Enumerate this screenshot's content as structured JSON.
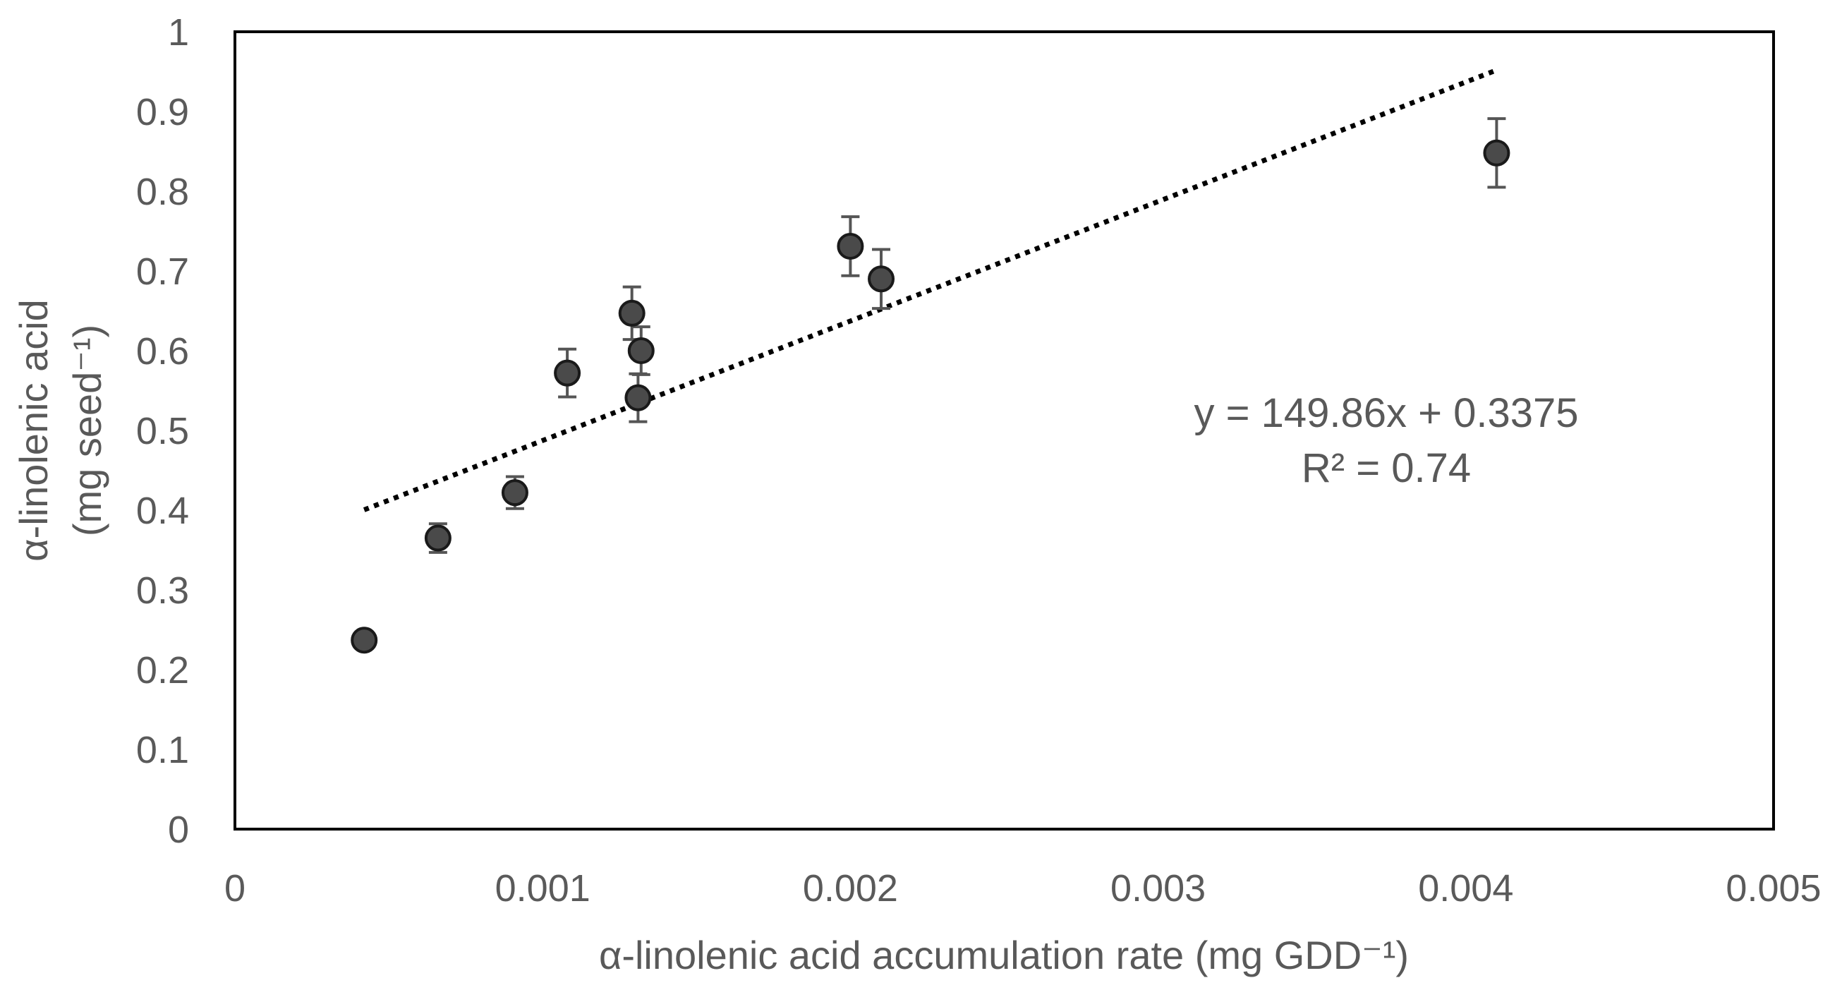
{
  "chart_data": {
    "type": "scatter",
    "xlabel": "α-linolenic acid accumulation rate (mg GDD⁻¹)",
    "ylabel_line1": "α-linolenic acid",
    "ylabel_line2": "(mg seed⁻¹)",
    "xlim": [
      0,
      0.005
    ],
    "ylim": [
      0,
      1
    ],
    "x_ticks": [
      0,
      0.001,
      0.002,
      0.003,
      0.004,
      0.005
    ],
    "x_tick_labels": [
      "0",
      "0.001",
      "0.002",
      "0.003",
      "0.004",
      "0.005"
    ],
    "y_ticks": [
      0,
      0.1,
      0.2,
      0.3,
      0.4,
      0.5,
      0.6,
      0.7,
      0.8,
      0.9,
      1
    ],
    "y_tick_labels": [
      "0",
      "0.1",
      "0.2",
      "0.3",
      "0.4",
      "0.5",
      "0.6",
      "0.7",
      "0.8",
      "0.9",
      "1"
    ],
    "grid": false,
    "points": [
      {
        "x": 0.00042,
        "y": 0.237,
        "err": 0.0
      },
      {
        "x": 0.00066,
        "y": 0.365,
        "err": 0.018
      },
      {
        "x": 0.00091,
        "y": 0.422,
        "err": 0.02
      },
      {
        "x": 0.00108,
        "y": 0.572,
        "err": 0.03
      },
      {
        "x": 0.00129,
        "y": 0.647,
        "err": 0.033
      },
      {
        "x": 0.00131,
        "y": 0.541,
        "err": 0.03
      },
      {
        "x": 0.00132,
        "y": 0.6,
        "err": 0.03
      },
      {
        "x": 0.002,
        "y": 0.731,
        "err": 0.037
      },
      {
        "x": 0.0021,
        "y": 0.69,
        "err": 0.037
      },
      {
        "x": 0.0041,
        "y": 0.848,
        "err": 0.043
      }
    ],
    "trendline": {
      "slope": 149.86,
      "intercept": 0.3375,
      "x_start": 0.00042,
      "x_end": 0.0041,
      "style": "dotted"
    },
    "equation_text": "y = 149.86x + 0.3375",
    "r2_text": "R² = 0.74",
    "colors": {
      "marker_fill": "#4a4a4a",
      "marker_stroke": "#1a1a1a",
      "axis": "#000000",
      "text": "#595959",
      "trend": "#000000",
      "errorbar": "#555555"
    }
  }
}
